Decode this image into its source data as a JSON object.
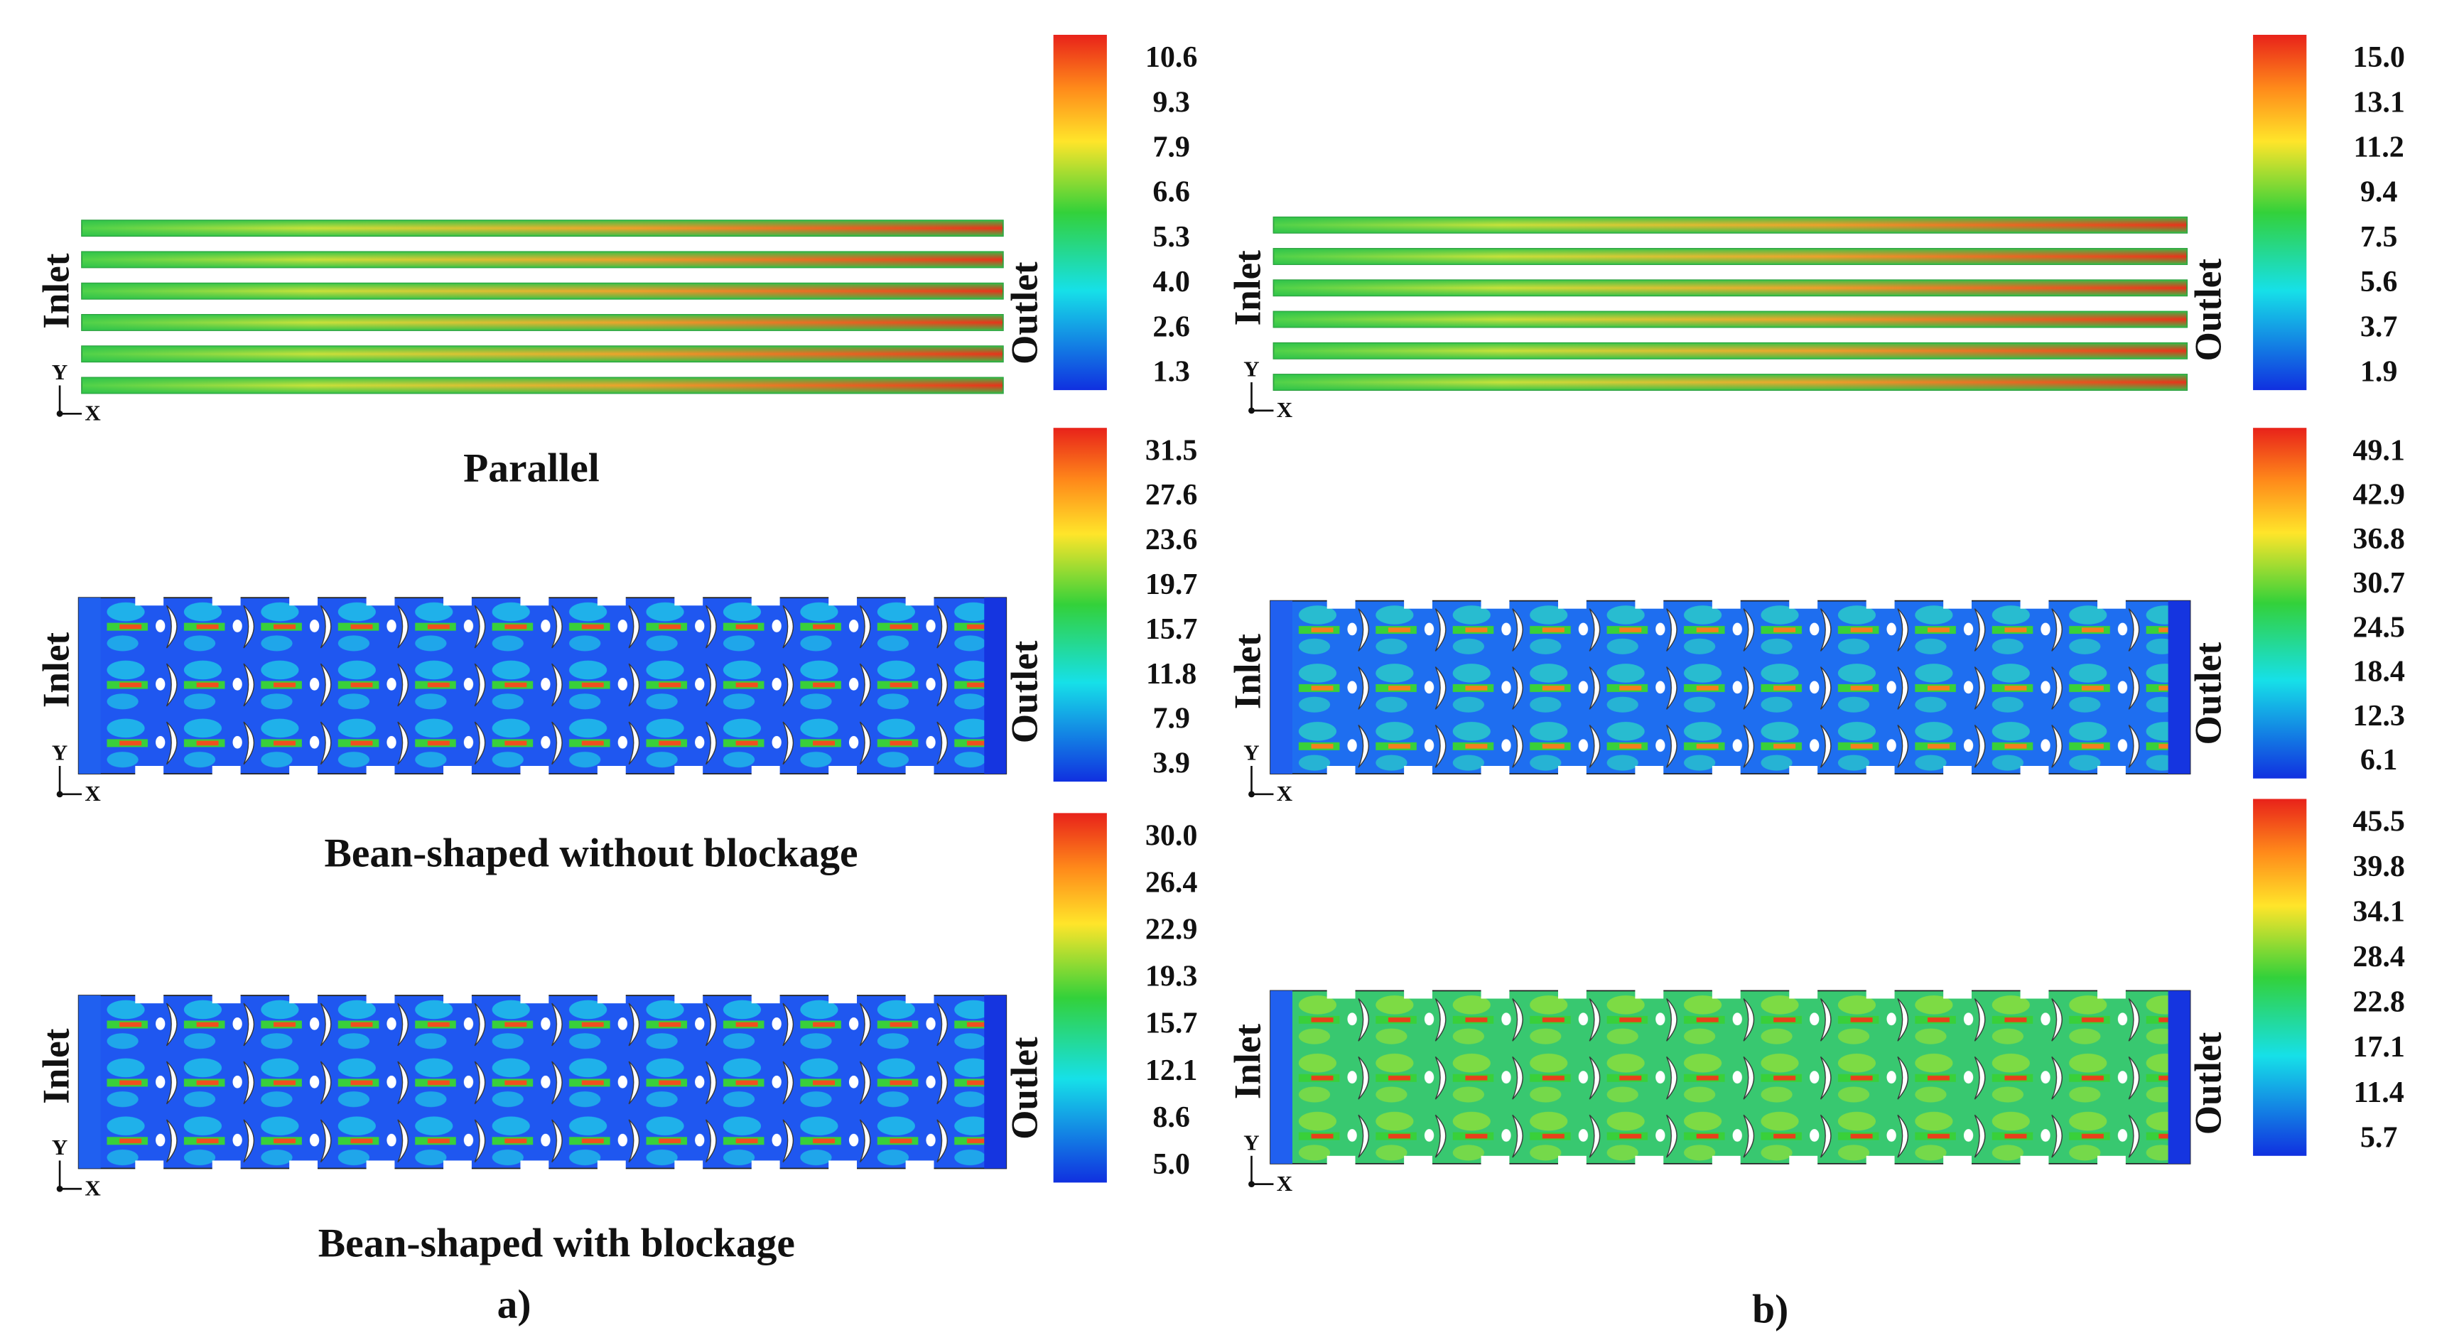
{
  "panels": [
    {
      "label": "a)",
      "plots": [
        {
          "caption": "Parallel",
          "inlet": "Inlet",
          "outlet": "Outlet",
          "x_axis": "X",
          "y_axis": "Y",
          "colorbar": [
            "10.6",
            "9.3",
            "7.9",
            "6.6",
            "5.3",
            "4.0",
            "2.6",
            "1.3"
          ]
        },
        {
          "caption": "Bean-shaped without blockage",
          "inlet": "Inlet",
          "outlet": "Outlet",
          "x_axis": "X",
          "y_axis": "Y",
          "colorbar": [
            "31.5",
            "27.6",
            "23.6",
            "19.7",
            "15.7",
            "11.8",
            "7.9",
            "3.9"
          ]
        },
        {
          "caption": "Bean-shaped with blockage",
          "inlet": "Inlet",
          "outlet": "Outlet",
          "x_axis": "X",
          "y_axis": "Y",
          "colorbar": [
            "30.0",
            "26.4",
            "22.9",
            "19.3",
            "15.7",
            "12.1",
            "8.6",
            "5.0"
          ]
        }
      ]
    },
    {
      "label": "b)",
      "plots": [
        {
          "inlet": "Inlet",
          "outlet": "Outlet",
          "x_axis": "X",
          "y_axis": "Y",
          "colorbar": [
            "15.0",
            "13.1",
            "11.2",
            "9.4",
            "7.5",
            "5.6",
            "3.7",
            "1.9"
          ]
        },
        {
          "inlet": "Inlet",
          "outlet": "Outlet",
          "x_axis": "X",
          "y_axis": "Y",
          "colorbar": [
            "49.1",
            "42.9",
            "36.8",
            "30.7",
            "24.5",
            "18.4",
            "12.3",
            "6.1"
          ]
        },
        {
          "inlet": "Inlet",
          "outlet": "Outlet",
          "x_axis": "X",
          "y_axis": "Y",
          "colorbar": [
            "45.5",
            "39.8",
            "34.1",
            "28.4",
            "22.8",
            "17.1",
            "11.4",
            "5.7"
          ]
        }
      ]
    }
  ]
}
